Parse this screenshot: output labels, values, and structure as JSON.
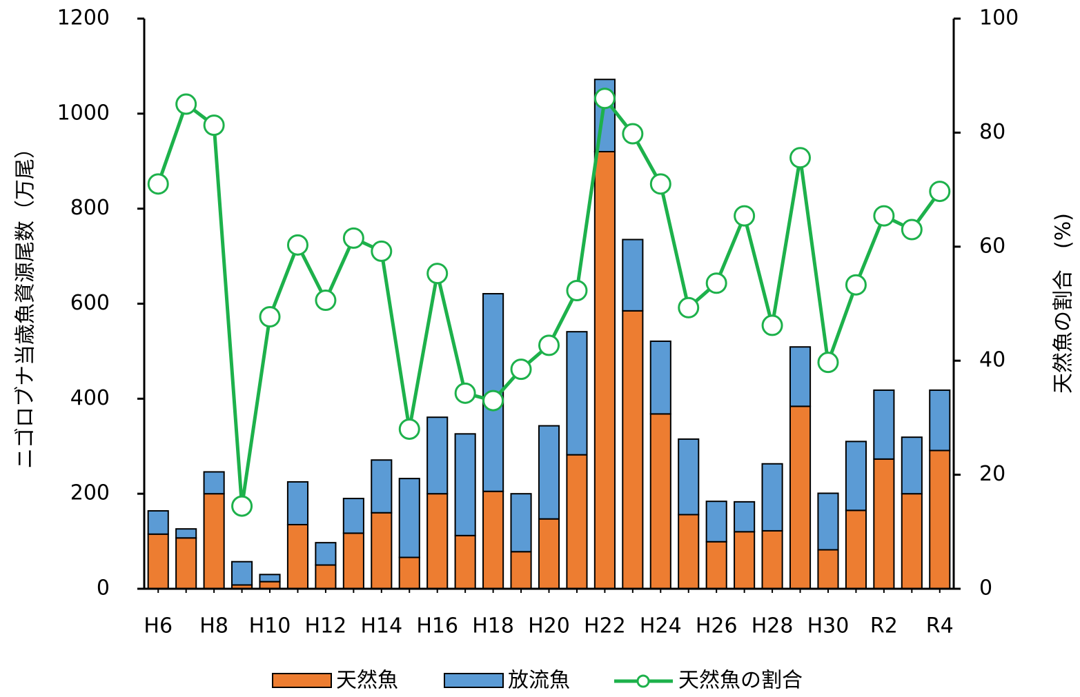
{
  "chart_data": {
    "type": "bar",
    "stacked": true,
    "secondary_type": "line",
    "categories": [
      "H6",
      "H7",
      "H8",
      "H9",
      "H10",
      "H11",
      "H12",
      "H13",
      "H14",
      "H15",
      "H16",
      "H17",
      "H18",
      "H19",
      "H20",
      "H21",
      "H22",
      "H23",
      "H24",
      "H25",
      "H26",
      "H27",
      "H28",
      "H29",
      "H30",
      "R1",
      "R2",
      "R3",
      "R4"
    ],
    "tick_labels": [
      "H6",
      "",
      "H8",
      "",
      "H10",
      "",
      "H12",
      "",
      "H14",
      "",
      "H16",
      "",
      "H18",
      "",
      "H20",
      "",
      "H22",
      "",
      "H24",
      "",
      "H26",
      "",
      "H28",
      "",
      "H30",
      "",
      "R2",
      "",
      "R4"
    ],
    "series": [
      {
        "name": "天然魚",
        "color": "#ED7D31",
        "axis": "left",
        "values": [
          115,
          107,
          200,
          8,
          15,
          135,
          50,
          117,
          160,
          66,
          200,
          112,
          205,
          78,
          147,
          282,
          920,
          585,
          368,
          156,
          99,
          120,
          122,
          384,
          82,
          165,
          273,
          200,
          291
        ]
      },
      {
        "name": "放流魚",
        "color": "#5B9BD5",
        "axis": "left",
        "values": [
          49,
          19,
          46,
          49,
          15,
          90,
          47,
          73,
          111,
          166,
          161,
          214,
          416,
          122,
          196,
          259,
          152,
          150,
          153,
          159,
          85,
          63,
          141,
          125,
          119,
          145,
          145,
          119,
          127
        ]
      },
      {
        "name": "天然魚の割合",
        "color": "#1DB14B",
        "axis": "right",
        "values": [
          71,
          85,
          81.3,
          14.5,
          47.7,
          60.3,
          50.6,
          61.5,
          59.2,
          28,
          55.3,
          34.3,
          33,
          38.5,
          42.7,
          52.3,
          86,
          79.8,
          71,
          49.3,
          53.6,
          65.4,
          46.2,
          75.6,
          39.7,
          53.3,
          65.4,
          63,
          69.7
        ]
      }
    ],
    "ylabel": "ニゴロブナ当歳魚資源尾数（万尾）",
    "y2label": "天然魚の割合　(%)",
    "ylim": [
      0,
      1200
    ],
    "yticks": [
      "0",
      "200",
      "400",
      "600",
      "800",
      "1000",
      "1200"
    ],
    "y2lim": [
      0,
      100
    ],
    "y2ticks": [
      "0",
      "20",
      "40",
      "60",
      "80",
      "100"
    ],
    "grid": false,
    "legend_position": "bottom"
  }
}
